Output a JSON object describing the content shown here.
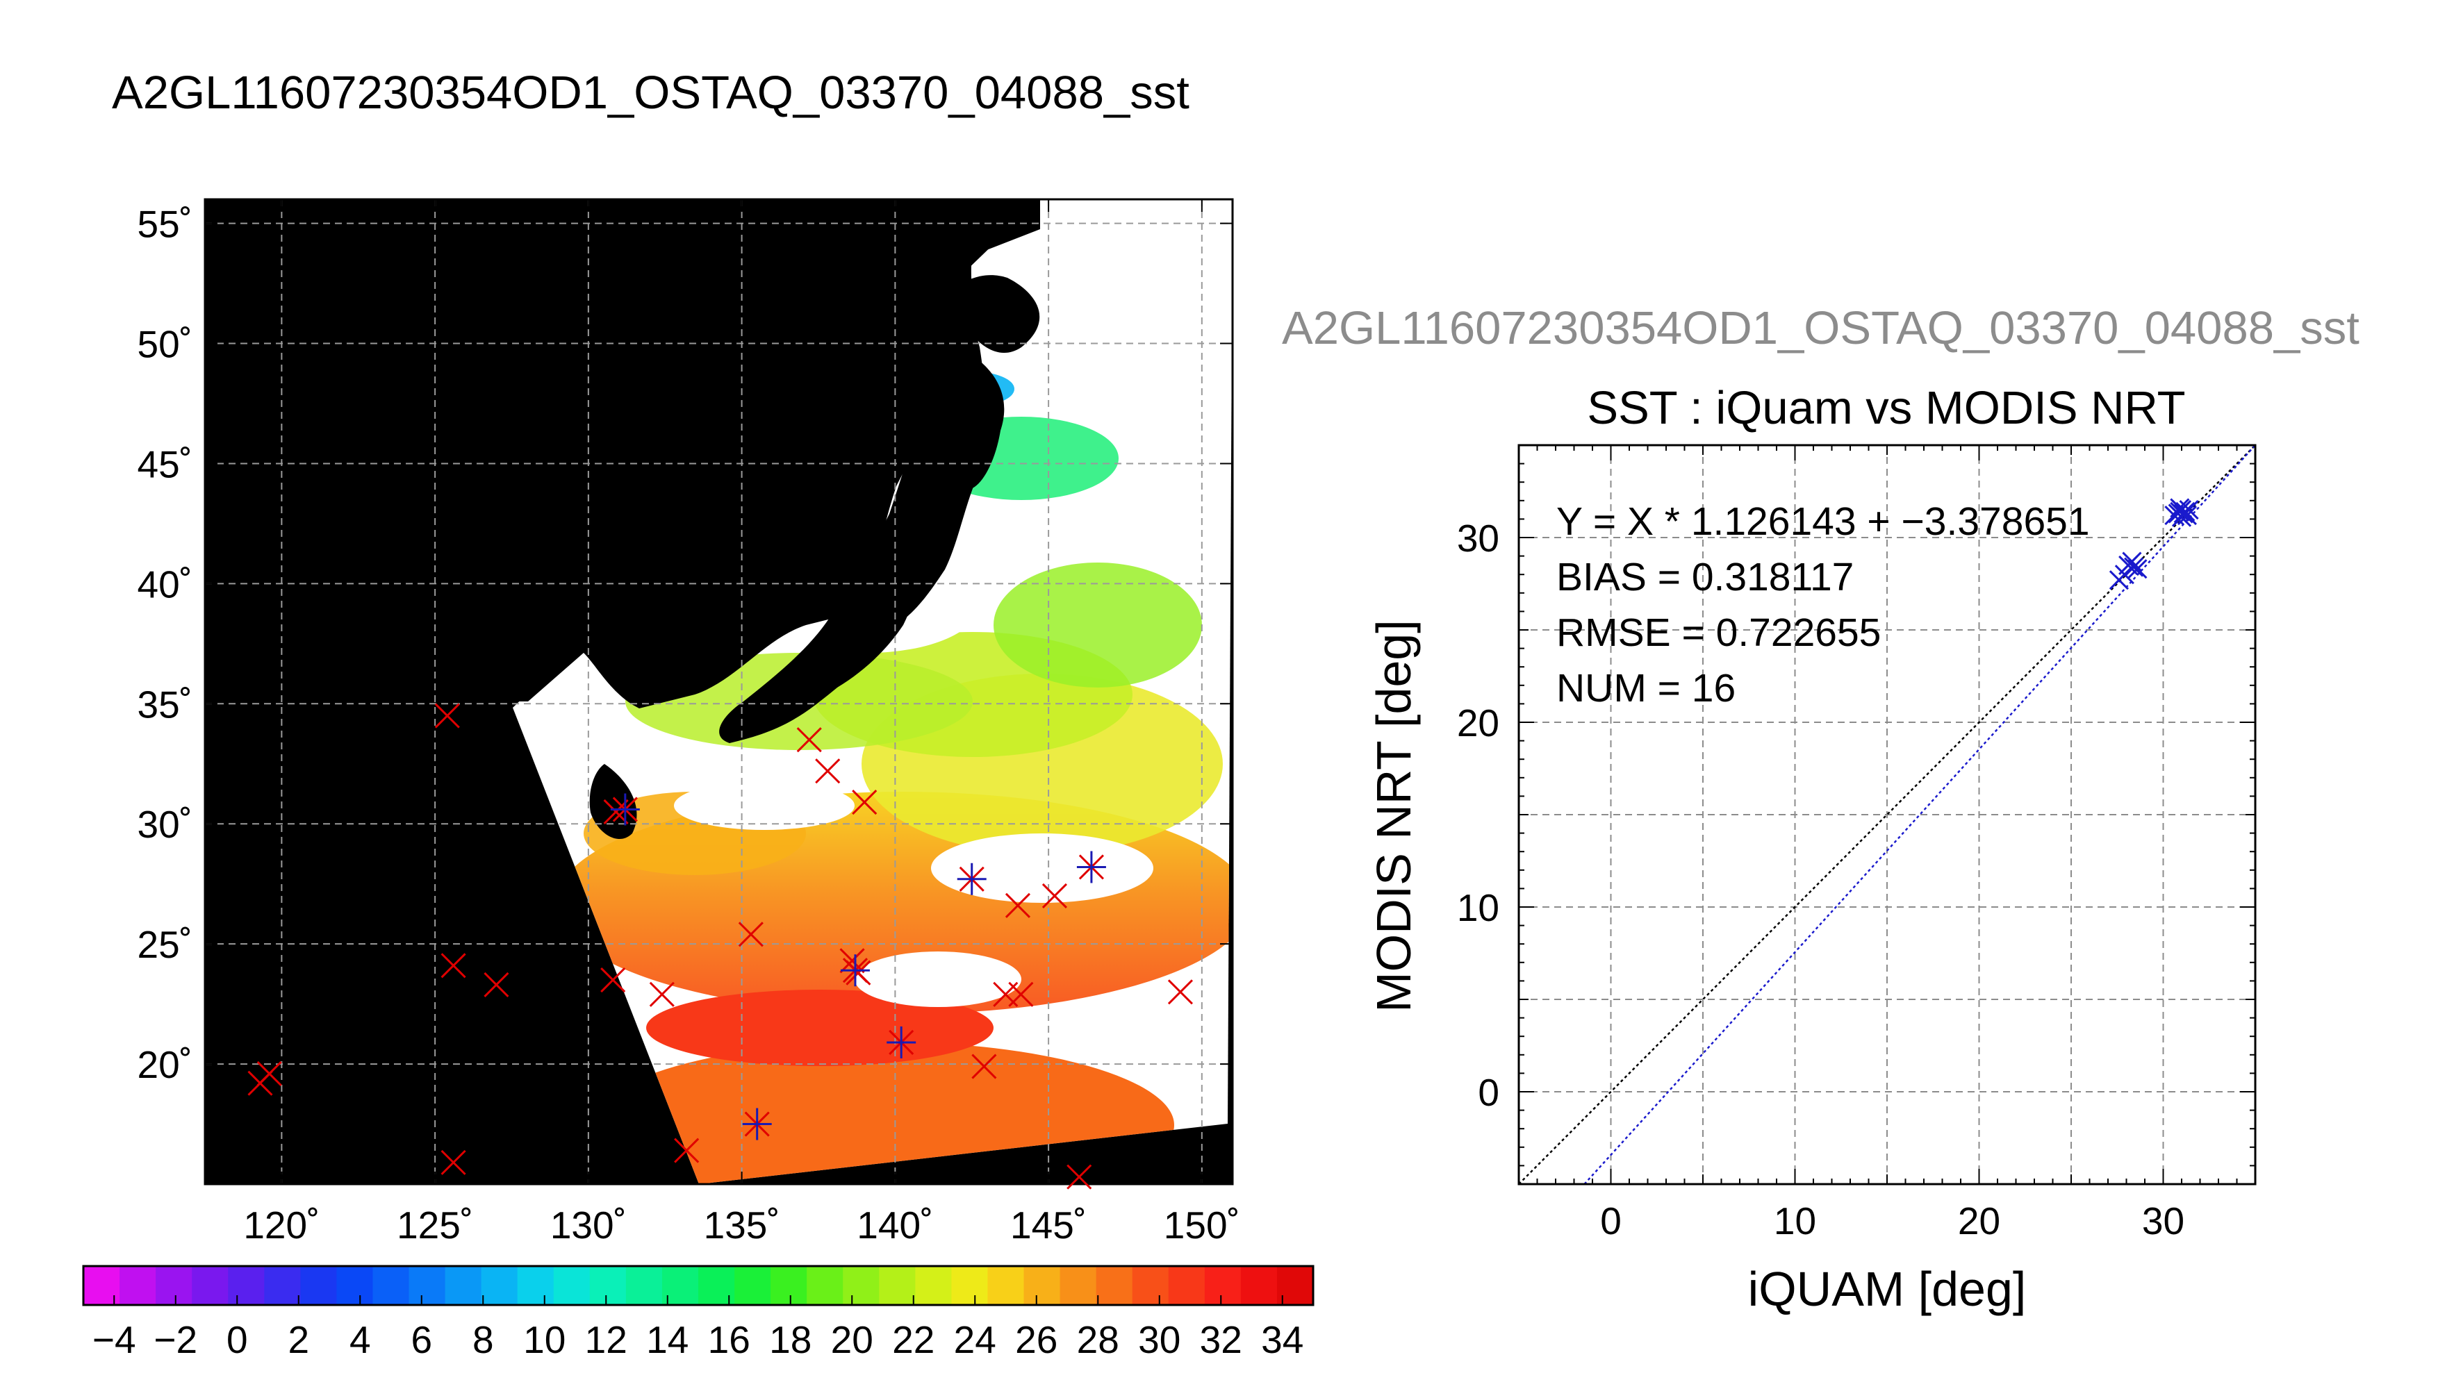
{
  "title": "A2GL11607230354OD1_OSTAQ_03370_04088_sst",
  "map": {
    "lat_ticks": [
      55,
      50,
      45,
      40,
      35,
      30,
      25,
      20
    ],
    "lon_ticks": [
      120,
      125,
      130,
      135,
      140,
      145,
      150
    ],
    "lat_labels": [
      "55˚",
      "50˚",
      "45˚",
      "40˚",
      "35˚",
      "30˚",
      "25˚",
      "20˚"
    ],
    "lon_labels": [
      "120˚",
      "125˚",
      "130˚",
      "135˚",
      "140˚",
      "145˚",
      "150˚"
    ],
    "lon_range": [
      117.5,
      151.0
    ],
    "lat_range": [
      15.0,
      56.0
    ],
    "colors": {
      "land": "#000000",
      "cloud": "#ffffff",
      "insitu_marker": "#e00000",
      "matchup_marker": "#1a1ab3"
    },
    "insitu_points": [
      [
        125.4,
        34.5
      ],
      [
        137.2,
        33.5
      ],
      [
        137.8,
        32.2
      ],
      [
        139.0,
        30.9
      ],
      [
        130.9,
        30.5
      ],
      [
        135.3,
        25.4
      ],
      [
        125.6,
        24.1
      ],
      [
        127.0,
        23.3
      ],
      [
        130.8,
        23.5
      ],
      [
        132.4,
        22.9
      ],
      [
        143.6,
        22.9
      ],
      [
        144.1,
        22.9
      ],
      [
        149.3,
        23.0
      ],
      [
        138.6,
        24.3
      ],
      [
        144.0,
        26.6
      ],
      [
        145.2,
        27.0
      ],
      [
        119.6,
        19.6
      ],
      [
        119.3,
        19.2
      ],
      [
        142.9,
        19.9
      ],
      [
        125.6,
        15.9
      ],
      [
        133.2,
        16.4
      ],
      [
        146.0,
        15.3
      ],
      [
        138.8,
        23.8
      ]
    ],
    "matchup_points": [
      [
        131.2,
        30.6
      ],
      [
        142.5,
        27.7
      ],
      [
        146.4,
        28.2
      ],
      [
        138.7,
        23.9
      ],
      [
        140.2,
        20.9
      ],
      [
        135.5,
        17.5
      ]
    ]
  },
  "colorbar": {
    "labels": [
      "−4",
      "−2",
      "0",
      "2",
      "4",
      "6",
      "8",
      "10",
      "12",
      "14",
      "16",
      "18",
      "20",
      "22",
      "24",
      "26",
      "28",
      "30",
      "32",
      "34"
    ],
    "min": -5,
    "max": 35,
    "colors": [
      "#e80ef0",
      "#c010f0",
      "#9a14f0",
      "#7a18ee",
      "#5a20ee",
      "#3a2cf0",
      "#1a38f2",
      "#0a48f6",
      "#0a60f8",
      "#0a7af8",
      "#0a98f6",
      "#0ab4f4",
      "#0ad0ec",
      "#0ae4d8",
      "#0af0b8",
      "#0af098",
      "#0af078",
      "#0af058",
      "#1af038",
      "#3af020",
      "#6af018",
      "#90f018",
      "#b4f018",
      "#d4f018",
      "#eeea18",
      "#f8d018",
      "#f8b018",
      "#f89018",
      "#f87018",
      "#f85018",
      "#f83818",
      "#f82018",
      "#ee1010",
      "#e00808"
    ]
  },
  "scatter": {
    "gray_title": "A2GL11607230354OD1_OSTAQ_03370_04088_sst",
    "title": "SST : iQuam vs MODIS NRT",
    "stats": [
      "Y = X * 1.126143 + −3.378651",
      "BIAS = 0.318117",
      "RMSE = 0.722655",
      "NUM = 16"
    ],
    "xlabel": "iQUAM [deg]",
    "ylabel": "MODIS NRT [deg]",
    "x_ticks": [
      "0",
      "10",
      "20",
      "30"
    ],
    "y_ticks": [
      "0",
      "10",
      "20",
      "30"
    ]
  },
  "chart_data": {
    "type": "scatter",
    "title": "SST : iQuam vs MODIS NRT",
    "xlabel": "iQUAM [deg]",
    "ylabel": "MODIS NRT [deg]",
    "xlim": [
      -5,
      35
    ],
    "ylim": [
      -5,
      35
    ],
    "grid": true,
    "points": [
      [
        27.6,
        27.7
      ],
      [
        27.9,
        28.0
      ],
      [
        28.1,
        28.5
      ],
      [
        28.3,
        28.7
      ],
      [
        28.4,
        28.4
      ],
      [
        28.6,
        28.3
      ],
      [
        30.6,
        31.2
      ],
      [
        30.8,
        31.3
      ],
      [
        30.9,
        31.4
      ],
      [
        31.0,
        31.5
      ],
      [
        31.0,
        31.1
      ],
      [
        31.1,
        31.3
      ],
      [
        31.2,
        31.4
      ],
      [
        31.3,
        31.2
      ],
      [
        31.4,
        31.5
      ],
      [
        30.9,
        31.6
      ]
    ],
    "regression": {
      "slope": 1.126143,
      "intercept": -3.378651
    },
    "bias": 0.318117,
    "rmse": 0.722655,
    "num": 16
  }
}
